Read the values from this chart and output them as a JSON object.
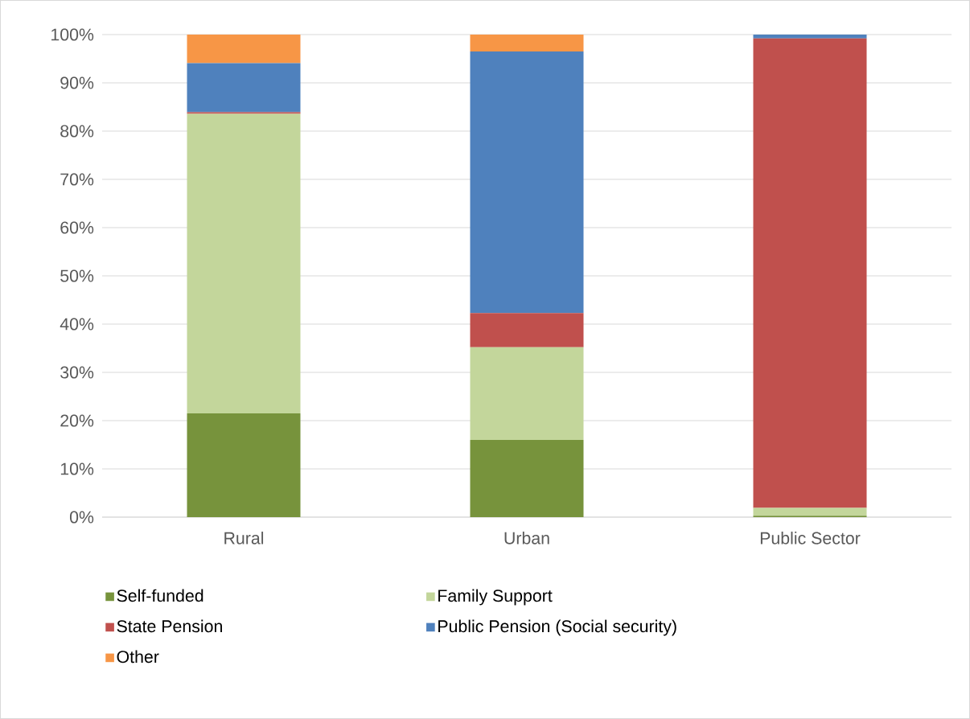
{
  "chart_data": {
    "type": "bar",
    "stacked": true,
    "categories": [
      "Rural",
      "Urban",
      "Public Sector"
    ],
    "series": [
      {
        "name": "Self-funded",
        "color": "#77933c",
        "values": [
          21.5,
          16,
          0.3
        ]
      },
      {
        "name": "Family Support",
        "color": "#c3d69b",
        "values": [
          62.1,
          19.2,
          1.6
        ]
      },
      {
        "name": "State Pension",
        "color": "#c0504d",
        "values": [
          0.3,
          7.1,
          97.3
        ]
      },
      {
        "name": "Public Pension (Social security)",
        "color": "#4f81bd",
        "values": [
          10.2,
          54.2,
          0.8
        ]
      },
      {
        "name": "Other",
        "color": "#f79646",
        "values": [
          5.9,
          3.5,
          0
        ]
      }
    ],
    "ylim": [
      0,
      100
    ],
    "yticks": [
      {
        "value": 0,
        "label": "0%"
      },
      {
        "value": 10,
        "label": "10%"
      },
      {
        "value": 20,
        "label": "20%"
      },
      {
        "value": 30,
        "label": "30%"
      },
      {
        "value": 40,
        "label": "40%"
      },
      {
        "value": 50,
        "label": "50%"
      },
      {
        "value": 60,
        "label": "60%"
      },
      {
        "value": 70,
        "label": "70%"
      },
      {
        "value": 80,
        "label": "80%"
      },
      {
        "value": 90,
        "label": "90%"
      },
      {
        "value": 100,
        "label": "100%"
      }
    ],
    "grid": "y",
    "legend": "bottom"
  }
}
